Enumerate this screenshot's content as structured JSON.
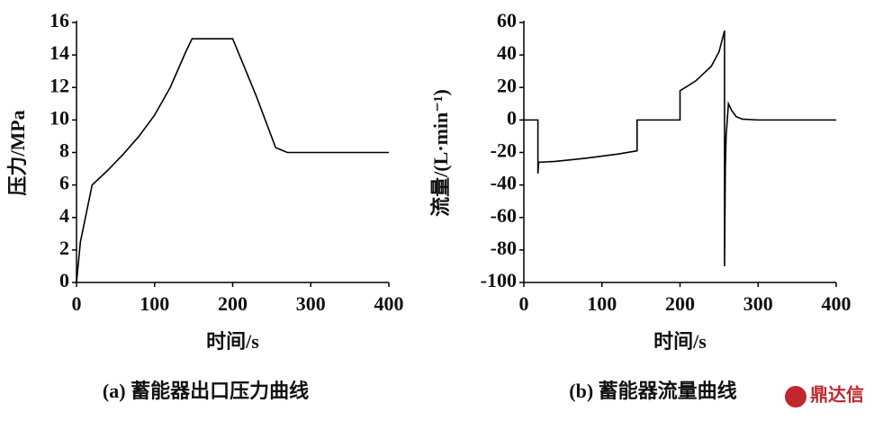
{
  "chart_data": [
    {
      "type": "line",
      "caption": "(a) 蓄能器出口压力曲线",
      "xlabel": "时间/s",
      "ylabel": "压力/MPa",
      "x": [
        0,
        5,
        20,
        40,
        60,
        80,
        100,
        120,
        140,
        148,
        200,
        230,
        255,
        260,
        270,
        400
      ],
      "values": [
        0,
        2.5,
        6,
        6.9,
        7.9,
        9,
        10.3,
        12,
        14.2,
        15,
        15,
        11.5,
        8.3,
        8.2,
        8,
        8
      ],
      "color": "#000000",
      "xlim": [
        0,
        400
      ],
      "xticks": [
        0,
        100,
        200,
        300,
        400
      ],
      "ylim": [
        0,
        16
      ],
      "yticks": [
        0,
        2,
        4,
        6,
        8,
        10,
        12,
        14,
        16
      ]
    },
    {
      "type": "line",
      "caption": "(b) 蓄能器流量曲线",
      "xlabel": "时间/s",
      "ylabel": "流量/(L·min⁻¹)",
      "x": [
        0,
        18,
        18,
        19,
        40,
        80,
        120,
        145,
        145,
        200,
        200,
        220,
        240,
        250,
        257,
        257,
        258,
        259,
        262,
        266,
        272,
        280,
        300,
        400
      ],
      "values": [
        0,
        0,
        -33,
        -26,
        -25.5,
        -23.5,
        -21,
        -19,
        0,
        0,
        18,
        24,
        33,
        42,
        55,
        -90,
        -30,
        -10,
        10,
        6,
        2,
        0.5,
        0,
        0
      ],
      "color": "#000000",
      "xlim": [
        0,
        400
      ],
      "xticks": [
        0,
        100,
        200,
        300,
        400
      ],
      "ylim": [
        -100,
        60
      ],
      "yticks": [
        -100,
        -80,
        -60,
        -40,
        -20,
        0,
        20,
        40,
        60
      ]
    }
  ],
  "watermark": "鼎达信"
}
